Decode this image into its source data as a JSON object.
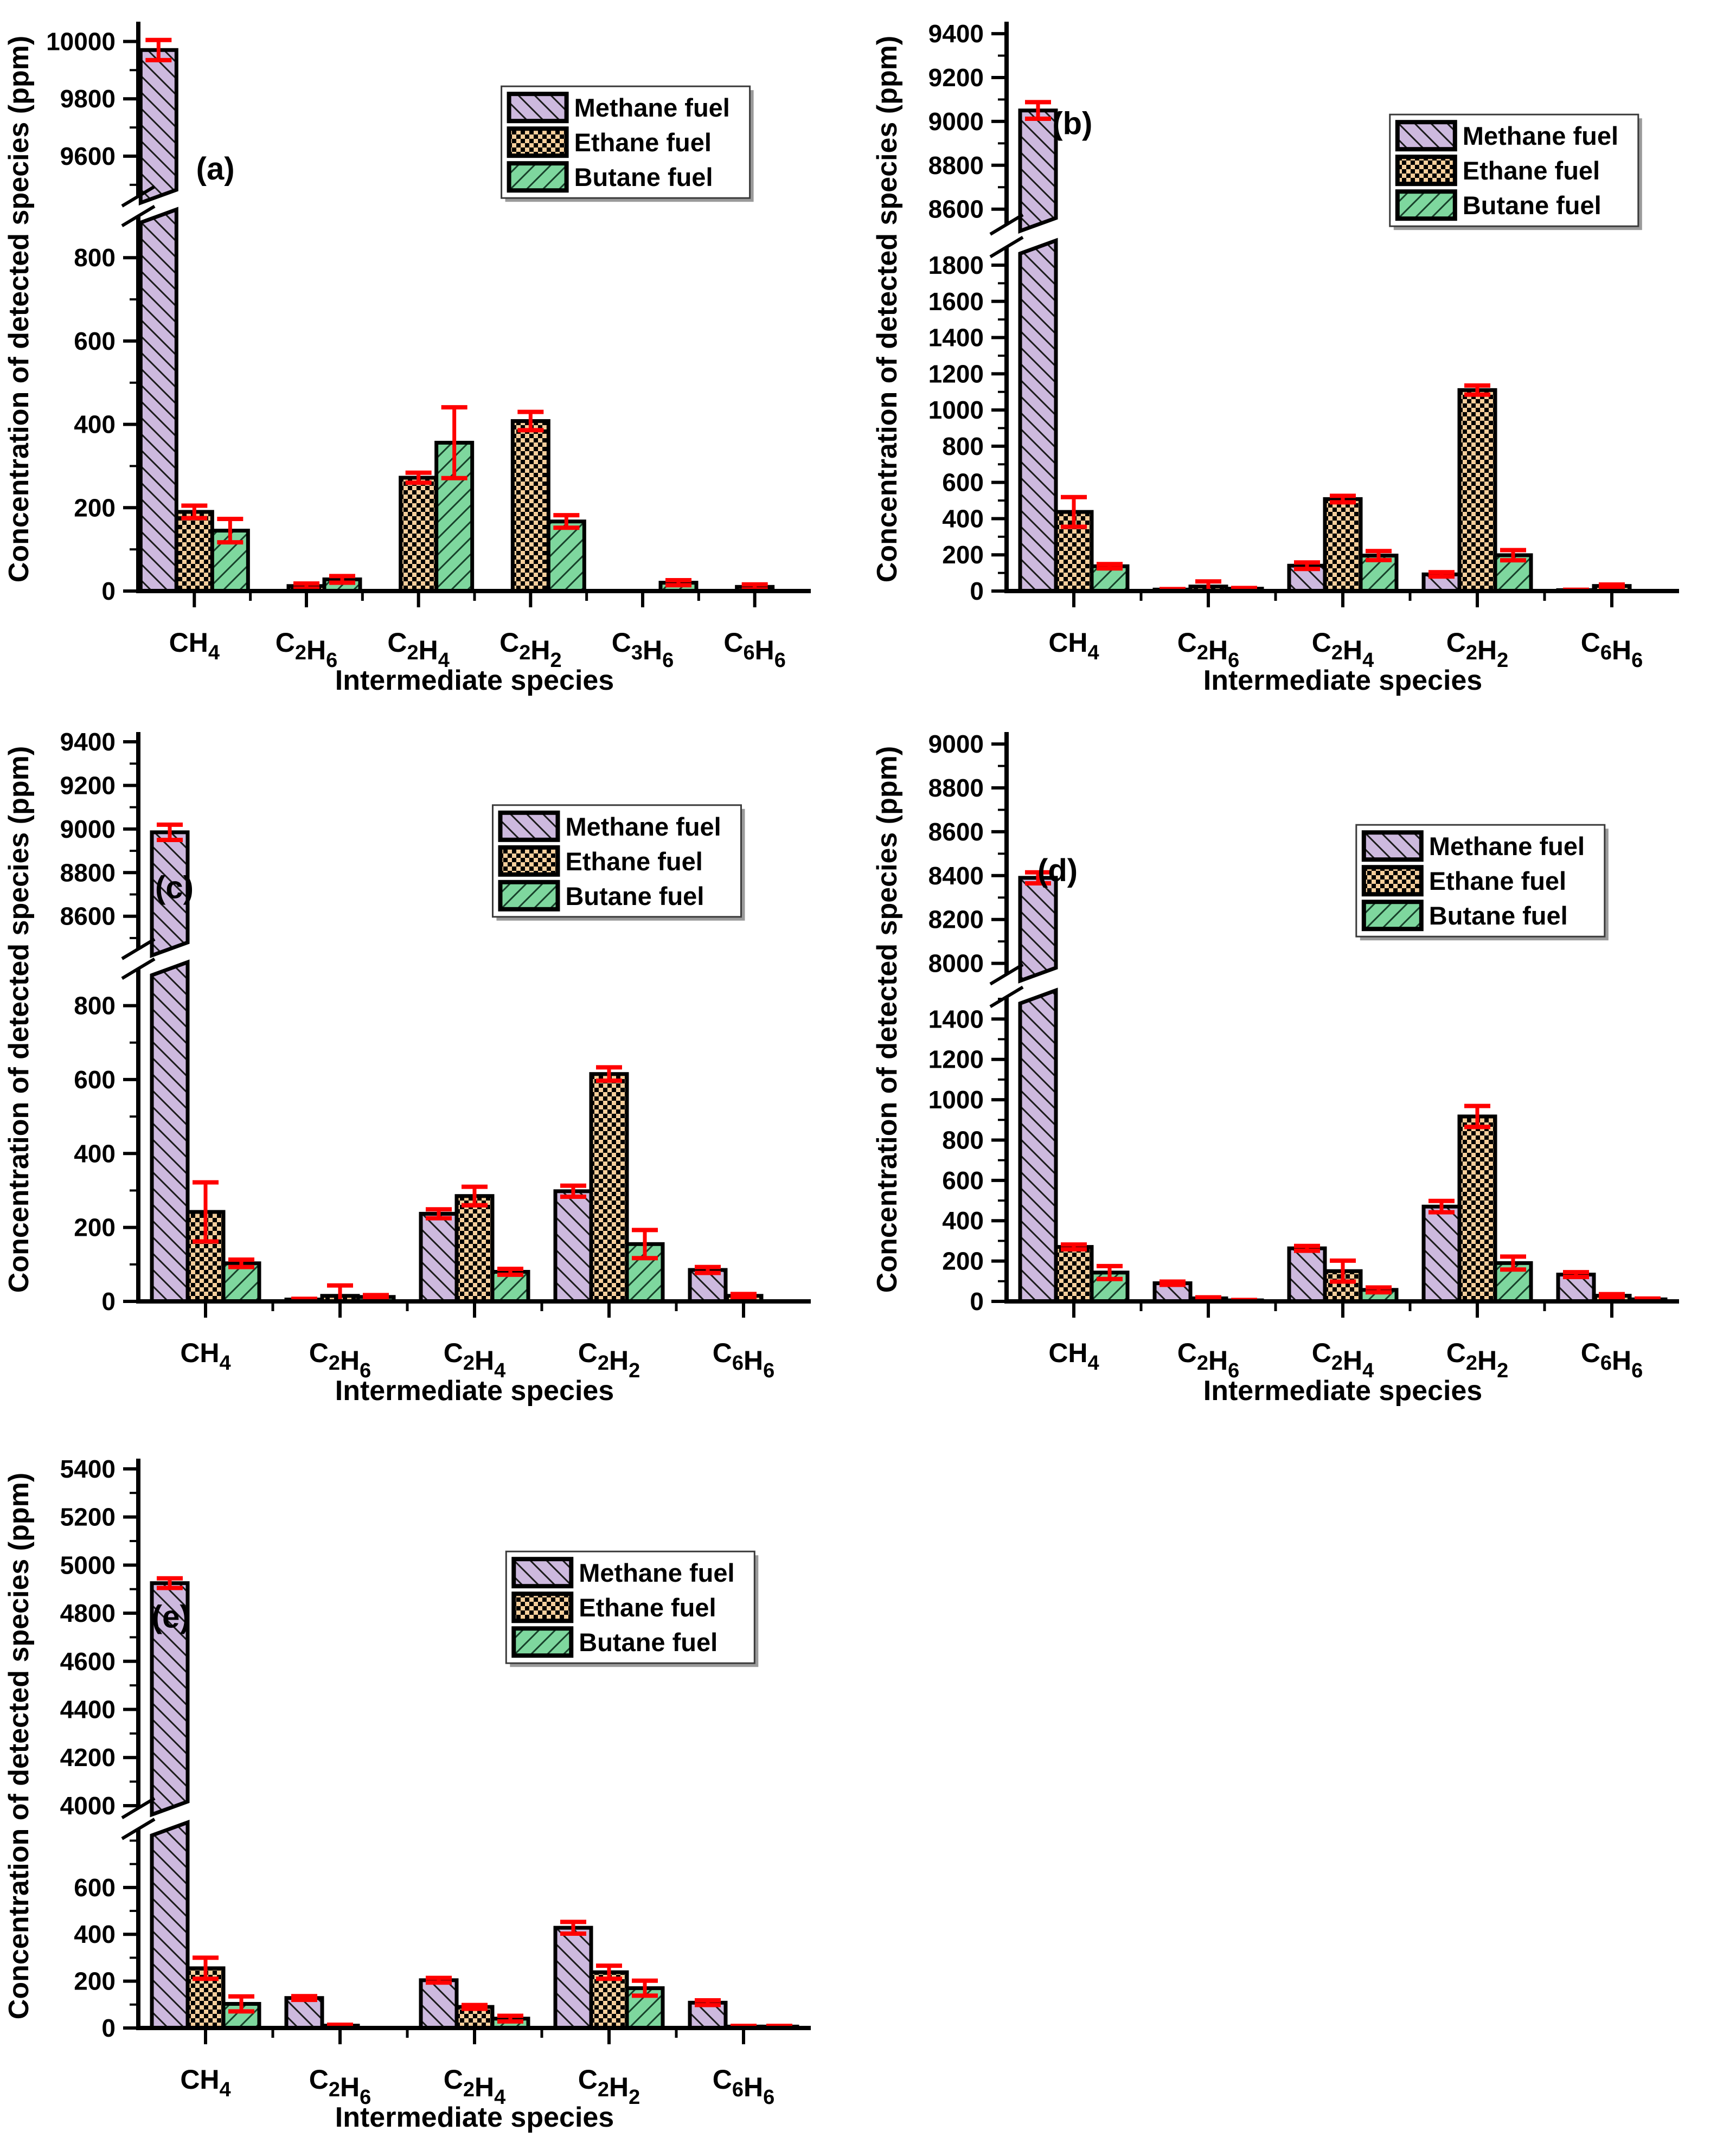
{
  "colors": {
    "methane_fill": "#CDB9DE",
    "ethane_fill": "#F5CE9B",
    "butane_fill": "#7ED79E",
    "hatch_line": "#1b1b1b",
    "butane_hatch_line": "#17402a",
    "error_bar": "#FF0000",
    "outline": "#000000",
    "legend_border": "#3a3a3a"
  },
  "legend_labels": [
    "Methane fuel",
    "Ethane fuel",
    "Butane fuel"
  ],
  "axis_titles": {
    "y": "Concentration of detected species (ppm)",
    "x": "Intermediate species"
  },
  "chart_data": [
    {
      "id": "a",
      "type": "bar",
      "panel_label": "(a)",
      "title": "",
      "xlabel": "Intermediate species",
      "ylabel": "Concentration of detected species (ppm)",
      "categories_text": [
        "CH4",
        "C2H6",
        "C2H4",
        "C2H2",
        "C3H6",
        "C6H6"
      ],
      "category_segments": [
        [
          {
            "t": "CH"
          },
          {
            "t": "4",
            "s": 1
          }
        ],
        [
          {
            "t": "C"
          },
          {
            "t": "2",
            "s": 1
          },
          {
            "t": "H"
          },
          {
            "t": "6",
            "s": 1
          }
        ],
        [
          {
            "t": "C"
          },
          {
            "t": "2",
            "s": 1
          },
          {
            "t": "H"
          },
          {
            "t": "4",
            "s": 1
          }
        ],
        [
          {
            "t": "C"
          },
          {
            "t": "2",
            "s": 1
          },
          {
            "t": "H"
          },
          {
            "t": "2",
            "s": 1
          }
        ],
        [
          {
            "t": "C"
          },
          {
            "t": "3",
            "s": 1
          },
          {
            "t": "H"
          },
          {
            "t": "6",
            "s": 1
          }
        ],
        [
          {
            "t": "C"
          },
          {
            "t": "6",
            "s": 1
          },
          {
            "t": "H"
          },
          {
            "t": "6",
            "s": 1
          }
        ]
      ],
      "series": [
        {
          "key": "methane",
          "name": "Methane fuel",
          "values": [
            9970,
            0,
            0,
            0,
            0,
            0
          ],
          "errors": [
            35,
            0,
            0,
            0,
            0,
            0
          ]
        },
        {
          "key": "ethane",
          "name": "Ethane fuel",
          "values": [
            190,
            12,
            272,
            408,
            0,
            10
          ],
          "errors": [
            15,
            6,
            12,
            22,
            0,
            6
          ]
        },
        {
          "key": "butane",
          "name": "Butane fuel",
          "values": [
            145,
            28,
            356,
            167,
            20,
            0
          ],
          "errors": [
            28,
            8,
            85,
            15,
            6,
            0
          ]
        }
      ],
      "axis": {
        "lower": {
          "min": 0,
          "max": 900,
          "ticks": [
            0,
            200,
            400,
            600,
            800
          ]
        },
        "upper": {
          "min": 9460,
          "max": 10050,
          "ticks": [
            9600,
            9800,
            10000
          ]
        },
        "fractions": {
          "lower": 0.665,
          "gap": 0.035,
          "upper": 0.3
        },
        "minor_step": 100
      },
      "legend_pos": {
        "x": 0.54,
        "y": 0.105
      },
      "panel_pos": {
        "x": 0.086,
        "y": 0.27
      }
    },
    {
      "id": "b",
      "type": "bar",
      "panel_label": "(b)",
      "title": "",
      "xlabel": "Intermediate species",
      "ylabel": "Concentration of detected species (ppm)",
      "categories_text": [
        "CH4",
        "C2H6",
        "C2H4",
        "C2H2",
        "C6H6"
      ],
      "category_segments": [
        [
          {
            "t": "CH"
          },
          {
            "t": "4",
            "s": 1
          }
        ],
        [
          {
            "t": "C"
          },
          {
            "t": "2",
            "s": 1
          },
          {
            "t": "H"
          },
          {
            "t": "6",
            "s": 1
          }
        ],
        [
          {
            "t": "C"
          },
          {
            "t": "2",
            "s": 1
          },
          {
            "t": "H"
          },
          {
            "t": "4",
            "s": 1
          }
        ],
        [
          {
            "t": "C"
          },
          {
            "t": "2",
            "s": 1
          },
          {
            "t": "H"
          },
          {
            "t": "2",
            "s": 1
          }
        ],
        [
          {
            "t": "C"
          },
          {
            "t": "6",
            "s": 1
          },
          {
            "t": "H"
          },
          {
            "t": "6",
            "s": 1
          }
        ]
      ],
      "series": [
        {
          "key": "methane",
          "name": "Methane fuel",
          "values": [
            9050,
            8,
            140,
            92,
            5
          ],
          "errors": [
            38,
            3,
            18,
            12,
            2
          ]
        },
        {
          "key": "ethane",
          "name": "Ethane fuel",
          "values": [
            437,
            25,
            508,
            1110,
            28
          ],
          "errors": [
            82,
            28,
            18,
            25,
            8
          ]
        },
        {
          "key": "butane",
          "name": "Butane fuel",
          "values": [
            137,
            13,
            196,
            198,
            0
          ],
          "errors": [
            12,
            4,
            25,
            28,
            0
          ]
        }
      ],
      "axis": {
        "lower": {
          "min": 0,
          "max": 1900,
          "ticks": [
            0,
            200,
            400,
            600,
            800,
            1000,
            1200,
            1400,
            1600,
            1800
          ]
        },
        "upper": {
          "min": 8530,
          "max": 9430,
          "ticks": [
            8600,
            8800,
            9000,
            9200,
            9400
          ]
        },
        "fractions": {
          "lower": 0.61,
          "gap": 0.04,
          "upper": 0.35
        },
        "minor_step": 100
      },
      "legend_pos": {
        "x": 0.57,
        "y": 0.155
      },
      "panel_pos": {
        "x": 0.068,
        "y": 0.19
      }
    },
    {
      "id": "c",
      "type": "bar",
      "panel_label": "(c)",
      "title": "",
      "xlabel": "Intermediate species",
      "ylabel": "Concentration of detected species (ppm)",
      "categories_text": [
        "CH4",
        "C2H6",
        "C2H4",
        "C2H2",
        "C6H6"
      ],
      "category_segments": [
        [
          {
            "t": "CH"
          },
          {
            "t": "4",
            "s": 1
          }
        ],
        [
          {
            "t": "C"
          },
          {
            "t": "2",
            "s": 1
          },
          {
            "t": "H"
          },
          {
            "t": "6",
            "s": 1
          }
        ],
        [
          {
            "t": "C"
          },
          {
            "t": "2",
            "s": 1
          },
          {
            "t": "H"
          },
          {
            "t": "4",
            "s": 1
          }
        ],
        [
          {
            "t": "C"
          },
          {
            "t": "2",
            "s": 1
          },
          {
            "t": "H"
          },
          {
            "t": "2",
            "s": 1
          }
        ],
        [
          {
            "t": "C"
          },
          {
            "t": "6",
            "s": 1
          },
          {
            "t": "H"
          },
          {
            "t": "6",
            "s": 1
          }
        ]
      ],
      "series": [
        {
          "key": "methane",
          "name": "Methane fuel",
          "values": [
            8985,
            5,
            237,
            298,
            85
          ],
          "errors": [
            35,
            2,
            12,
            15,
            8
          ]
        },
        {
          "key": "ethane",
          "name": "Ethane fuel",
          "values": [
            242,
            15,
            285,
            615,
            15
          ],
          "errors": [
            80,
            28,
            25,
            18,
            5
          ]
        },
        {
          "key": "butane",
          "name": "Butane fuel",
          "values": [
            103,
            12,
            80,
            155,
            0
          ],
          "errors": [
            10,
            5,
            8,
            38,
            0
          ]
        }
      ],
      "axis": {
        "lower": {
          "min": 0,
          "max": 900,
          "ticks": [
            0,
            200,
            400,
            600,
            800
          ]
        },
        "upper": {
          "min": 8450,
          "max": 9420,
          "ticks": [
            8600,
            8800,
            9000,
            9200,
            9400
          ]
        },
        "fractions": {
          "lower": 0.59,
          "gap": 0.035,
          "upper": 0.375
        },
        "minor_step": 100
      },
      "legend_pos": {
        "x": 0.527,
        "y": 0.12
      },
      "panel_pos": {
        "x": 0.025,
        "y": 0.285
      }
    },
    {
      "id": "d",
      "type": "bar",
      "panel_label": "(d)",
      "title": "",
      "xlabel": "Intermediate species",
      "ylabel": "Concentration of detected species (ppm)",
      "categories_text": [
        "CH4",
        "C2H6",
        "C2H4",
        "C2H2",
        "C6H6"
      ],
      "category_segments": [
        [
          {
            "t": "CH"
          },
          {
            "t": "4",
            "s": 1
          }
        ],
        [
          {
            "t": "C"
          },
          {
            "t": "2",
            "s": 1
          },
          {
            "t": "H"
          },
          {
            "t": "6",
            "s": 1
          }
        ],
        [
          {
            "t": "C"
          },
          {
            "t": "2",
            "s": 1
          },
          {
            "t": "H"
          },
          {
            "t": "4",
            "s": 1
          }
        ],
        [
          {
            "t": "C"
          },
          {
            "t": "2",
            "s": 1
          },
          {
            "t": "H"
          },
          {
            "t": "2",
            "s": 1
          }
        ],
        [
          {
            "t": "C"
          },
          {
            "t": "6",
            "s": 1
          },
          {
            "t": "H"
          },
          {
            "t": "6",
            "s": 1
          }
        ]
      ],
      "series": [
        {
          "key": "methane",
          "name": "Methane fuel",
          "values": [
            8390,
            90,
            263,
            470,
            133
          ],
          "errors": [
            25,
            8,
            12,
            28,
            12
          ]
        },
        {
          "key": "ethane",
          "name": "Ethane fuel",
          "values": [
            270,
            15,
            150,
            917,
            28
          ],
          "errors": [
            12,
            5,
            52,
            52,
            8
          ]
        },
        {
          "key": "butane",
          "name": "Butane fuel",
          "values": [
            143,
            5,
            57,
            190,
            10
          ],
          "errors": [
            32,
            2,
            12,
            32,
            4
          ]
        }
      ],
      "axis": {
        "lower": {
          "min": 0,
          "max": 1510,
          "ticks": [
            0,
            200,
            400,
            600,
            800,
            1000,
            1200,
            1400
          ]
        },
        "upper": {
          "min": 7950,
          "max": 9030,
          "ticks": [
            8000,
            8200,
            8400,
            8600,
            8800,
            9000
          ]
        },
        "fractions": {
          "lower": 0.54,
          "gap": 0.04,
          "upper": 0.42
        },
        "minor_step": 100
      },
      "legend_pos": {
        "x": 0.52,
        "y": 0.155
      },
      "panel_pos": {
        "x": 0.046,
        "y": 0.255
      }
    },
    {
      "id": "e",
      "type": "bar",
      "panel_label": "(e)",
      "title": "",
      "xlabel": "Intermediate species",
      "ylabel": "Concentration of detected species (ppm)",
      "categories_text": [
        "CH4",
        "C2H6",
        "C2H4",
        "C2H2",
        "C6H6"
      ],
      "category_segments": [
        [
          {
            "t": "CH"
          },
          {
            "t": "4",
            "s": 1
          }
        ],
        [
          {
            "t": "C"
          },
          {
            "t": "2",
            "s": 1
          },
          {
            "t": "H"
          },
          {
            "t": "6",
            "s": 1
          }
        ],
        [
          {
            "t": "C"
          },
          {
            "t": "2",
            "s": 1
          },
          {
            "t": "H"
          },
          {
            "t": "4",
            "s": 1
          }
        ],
        [
          {
            "t": "C"
          },
          {
            "t": "2",
            "s": 1
          },
          {
            "t": "H"
          },
          {
            "t": "2",
            "s": 1
          }
        ],
        [
          {
            "t": "C"
          },
          {
            "t": "6",
            "s": 1
          },
          {
            "t": "H"
          },
          {
            "t": "6",
            "s": 1
          }
        ]
      ],
      "series": [
        {
          "key": "methane",
          "name": "Methane fuel",
          "values": [
            4925,
            128,
            204,
            428,
            108
          ],
          "errors": [
            20,
            8,
            10,
            25,
            10
          ]
        },
        {
          "key": "ethane",
          "name": "Ethane fuel",
          "values": [
            255,
            10,
            90,
            238,
            6
          ],
          "errors": [
            45,
            4,
            8,
            28,
            3
          ]
        },
        {
          "key": "butane",
          "name": "Butane fuel",
          "values": [
            103,
            0,
            40,
            170,
            6
          ],
          "errors": [
            32,
            0,
            12,
            32,
            3
          ]
        }
      ],
      "axis": {
        "lower": {
          "min": 0,
          "max": 850,
          "ticks": [
            0,
            200,
            400,
            600
          ]
        },
        "upper": {
          "min": 3990,
          "max": 5420,
          "ticks": [
            4000,
            4200,
            4400,
            4600,
            4800,
            5000,
            5200,
            5400
          ]
        },
        "fractions": {
          "lower": 0.353,
          "gap": 0.037,
          "upper": 0.61
        },
        "minor_step": 100
      },
      "legend_pos": {
        "x": 0.547,
        "y": 0.155
      },
      "panel_pos": {
        "x": 0.02,
        "y": 0.29
      }
    }
  ]
}
